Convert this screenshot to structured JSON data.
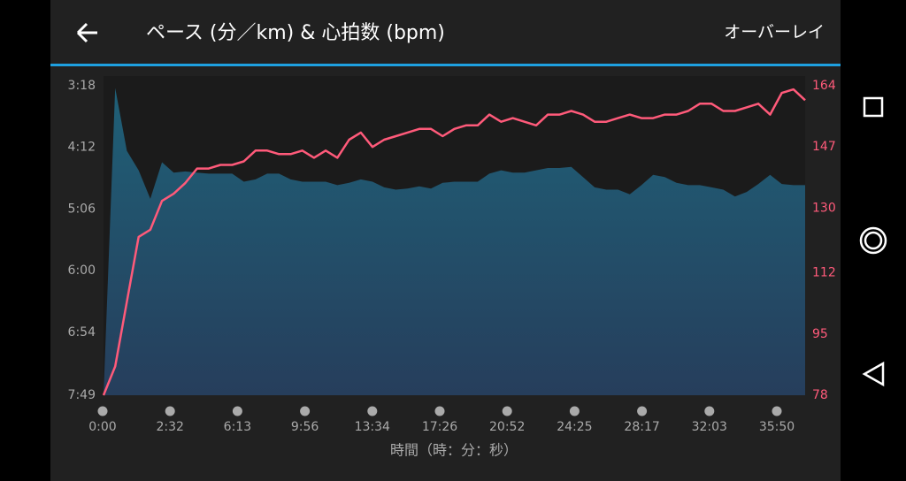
{
  "header": {
    "title": "ペース (分／km) & 心拍数 (bpm)",
    "action": "オーバーレイ"
  },
  "chart_data": {
    "type": "combo",
    "xlabel": "時間（時：分：秒）",
    "xtick_labels": [
      "0:00",
      "2:32",
      "6:13",
      "9:56",
      "13:34",
      "17:26",
      "20:52",
      "24:25",
      "28:17",
      "32:03",
      "35:50"
    ],
    "ylim": [
      469,
      198
    ],
    "yticks": [
      {
        "value": 198,
        "label": "3:18"
      },
      {
        "value": 252,
        "label": "4:12"
      },
      {
        "value": 306,
        "label": "5:06"
      },
      {
        "value": 360,
        "label": "6:00"
      },
      {
        "value": 414,
        "label": "6:54"
      },
      {
        "value": 469,
        "label": "7:49"
      }
    ],
    "y2lim": [
      78,
      164
    ],
    "y2ticks": [
      78,
      95,
      112,
      130,
      147,
      164
    ],
    "series": [
      {
        "mark": "area",
        "color": "#1f6077",
        "values": [
          469,
          200,
          255,
          272,
          297,
          265,
          274,
          273,
          274,
          275,
          275,
          275,
          282,
          280,
          275,
          275,
          280,
          282,
          282,
          282,
          285,
          283,
          280,
          282,
          287,
          289,
          288,
          286,
          288,
          283,
          282,
          282,
          282,
          275,
          272,
          274,
          274,
          272,
          270,
          270,
          269,
          278,
          287,
          289,
          289,
          293,
          285,
          276,
          278,
          283,
          285,
          285,
          287,
          289,
          295,
          291,
          284,
          276,
          284,
          285,
          285
        ]
      },
      {
        "mark": "line",
        "axis": "y2",
        "color": "#ff5a7a",
        "values": [
          78,
          86,
          104,
          122,
          124,
          132,
          134,
          137,
          141,
          141,
          142,
          142,
          143,
          146,
          146,
          145,
          145,
          146,
          144,
          146,
          144,
          149,
          151,
          147,
          149,
          150,
          151,
          152,
          152,
          150,
          152,
          153,
          153,
          156,
          154,
          155,
          154,
          153,
          156,
          156,
          157,
          156,
          154,
          154,
          155,
          156,
          155,
          155,
          156,
          156,
          157,
          159,
          159,
          157,
          157,
          158,
          159,
          156,
          162,
          163,
          160
        ]
      }
    ]
  }
}
